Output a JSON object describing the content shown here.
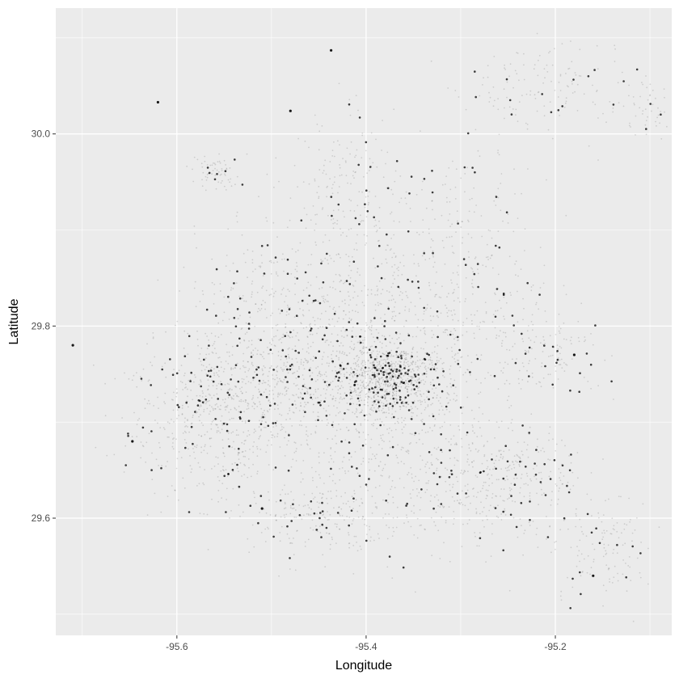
{
  "chart_data": {
    "type": "scatter",
    "title": "",
    "xlabel": "Longitude",
    "ylabel": "Latitude",
    "xlim": [
      -95.728,
      -95.077
    ],
    "ylim": [
      29.478,
      30.131
    ],
    "x_ticks": [
      {
        "value": -95.6,
        "label": "-95.6"
      },
      {
        "value": -95.4,
        "label": "-95.4"
      },
      {
        "value": -95.2,
        "label": "-95.2"
      }
    ],
    "y_ticks": [
      {
        "value": 29.6,
        "label": "29.6"
      },
      {
        "value": 29.8,
        "label": "29.8"
      },
      {
        "value": 30.0,
        "label": "30.0"
      }
    ],
    "grid": true,
    "point_color": "#000000",
    "panel_background": "#ebebeb",
    "gridline_color": "#ffffff",
    "density_clusters": [
      {
        "lon": -95.375,
        "lat": 29.745,
        "spread_lon": 0.025,
        "spread_lat": 0.02,
        "weight": 3.0
      },
      {
        "lon": -95.55,
        "lat": 29.7,
        "spread_lon": 0.05,
        "spread_lat": 0.04,
        "weight": 2.2
      },
      {
        "lon": -95.48,
        "lat": 29.74,
        "spread_lon": 0.07,
        "spread_lat": 0.025,
        "weight": 2.0
      },
      {
        "lon": -95.47,
        "lat": 29.82,
        "spread_lon": 0.06,
        "spread_lat": 0.04,
        "weight": 1.8
      },
      {
        "lon": -95.33,
        "lat": 29.81,
        "spread_lon": 0.06,
        "spread_lat": 0.05,
        "weight": 1.8
      },
      {
        "lon": -95.36,
        "lat": 29.67,
        "spread_lon": 0.06,
        "spread_lat": 0.05,
        "weight": 1.8
      },
      {
        "lon": -95.25,
        "lat": 29.64,
        "spread_lon": 0.04,
        "spread_lat": 0.03,
        "weight": 1.2
      },
      {
        "lon": -95.45,
        "lat": 29.6,
        "spread_lon": 0.04,
        "spread_lat": 0.02,
        "weight": 0.8
      },
      {
        "lon": -95.42,
        "lat": 29.94,
        "spread_lon": 0.03,
        "spread_lat": 0.04,
        "weight": 0.7
      },
      {
        "lon": -95.21,
        "lat": 30.05,
        "spread_lon": 0.05,
        "spread_lat": 0.025,
        "weight": 0.6
      },
      {
        "lon": -95.15,
        "lat": 29.57,
        "spread_lon": 0.025,
        "spread_lat": 0.03,
        "weight": 0.5
      },
      {
        "lon": -95.21,
        "lat": 29.77,
        "spread_lon": 0.03,
        "spread_lat": 0.02,
        "weight": 0.5
      },
      {
        "lon": -95.56,
        "lat": 29.96,
        "spread_lon": 0.015,
        "spread_lat": 0.01,
        "weight": 0.25
      },
      {
        "lon": -95.3,
        "lat": 29.93,
        "spread_lon": 0.03,
        "spread_lat": 0.03,
        "weight": 0.4
      },
      {
        "lon": -95.1,
        "lat": 30.02,
        "spread_lon": 0.012,
        "spread_lat": 0.015,
        "weight": 0.15
      }
    ],
    "isolated_points": [
      {
        "lon": -95.437,
        "lat": 30.087
      },
      {
        "lon": -95.62,
        "lat": 30.033
      },
      {
        "lon": -95.48,
        "lat": 30.024
      },
      {
        "lon": -95.647,
        "lat": 29.68
      },
      {
        "lon": -95.71,
        "lat": 29.78
      },
      {
        "lon": -95.51,
        "lat": 29.61
      },
      {
        "lon": -95.18,
        "lat": 29.77
      },
      {
        "lon": -95.16,
        "lat": 29.54
      }
    ]
  }
}
